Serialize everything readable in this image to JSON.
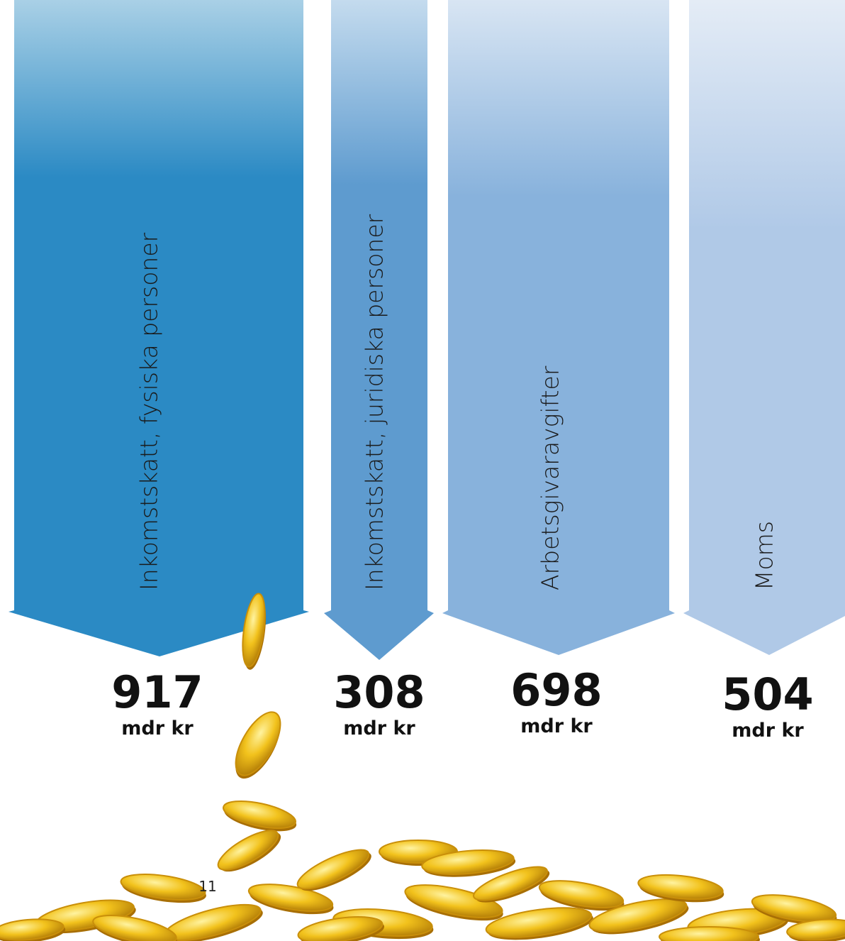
{
  "items": [
    {
      "label": "Inkomstskatt, fysiska personer",
      "value": 917,
      "unit": "mdr kr"
    },
    {
      "label": "Inkomstskatt, juridiska personer",
      "value": 308,
      "unit": "mdr kr"
    },
    {
      "label": "Arbetsgivaravgifter",
      "value": 698,
      "unit": "mdr kr"
    },
    {
      "label": "Moms",
      "value": 504,
      "unit": "mdr kr"
    }
  ],
  "page_number": "11"
}
